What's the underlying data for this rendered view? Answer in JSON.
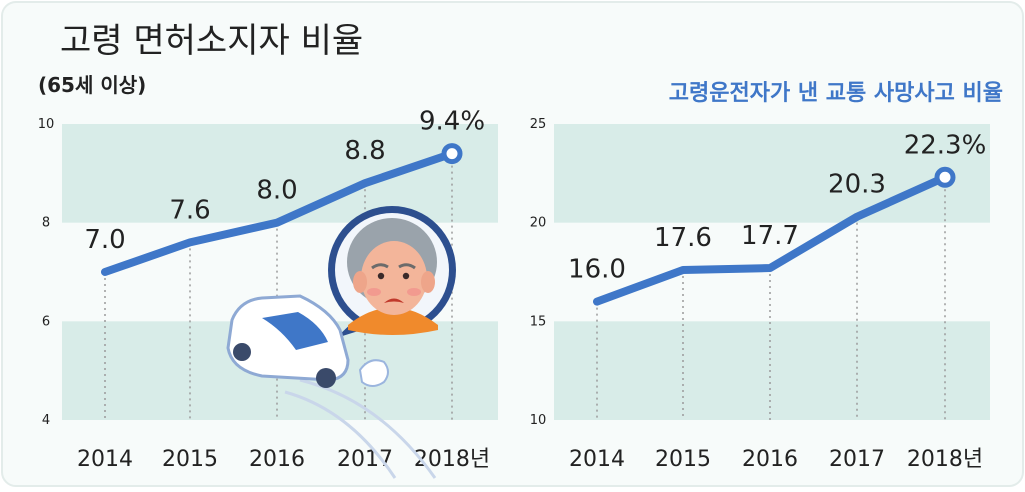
{
  "colors": {
    "background": "#f7fbfa",
    "band": "#d8ece8",
    "line": "#3f77c8",
    "text": "#222222",
    "accent_title": "#3f77c8",
    "grid_dots": "#9a9a9a"
  },
  "chart_data": [
    {
      "type": "line",
      "title": "고령 면허소지자 비율",
      "subtitle": "(65세 이상)",
      "categories": [
        "2014",
        "2015",
        "2016",
        "2017",
        "2018년"
      ],
      "values": [
        7.0,
        7.6,
        8.0,
        8.8,
        9.4
      ],
      "data_labels": [
        "7.0",
        "7.6",
        "8.0",
        "8.8",
        "9.4%"
      ],
      "ylim": [
        4,
        10
      ],
      "yticks": [
        "4",
        "6",
        "8",
        "10"
      ],
      "grid": "alternating horizontal bands, dotted vertical guides",
      "last_point_marker": "hollow circle"
    },
    {
      "type": "line",
      "title": "고령운전자가 낸 교통 사망사고 비율",
      "categories": [
        "2014",
        "2015",
        "2016",
        "2017",
        "2018년"
      ],
      "values": [
        16.0,
        17.6,
        17.7,
        20.3,
        22.3
      ],
      "data_labels": [
        "16.0",
        "17.6",
        "17.7",
        "20.3",
        "22.3%"
      ],
      "ylim": [
        10,
        25
      ],
      "yticks": [
        "10",
        "15",
        "20",
        "25"
      ],
      "grid": "alternating horizontal bands, dotted vertical guides",
      "last_point_marker": "hollow circle"
    }
  ]
}
